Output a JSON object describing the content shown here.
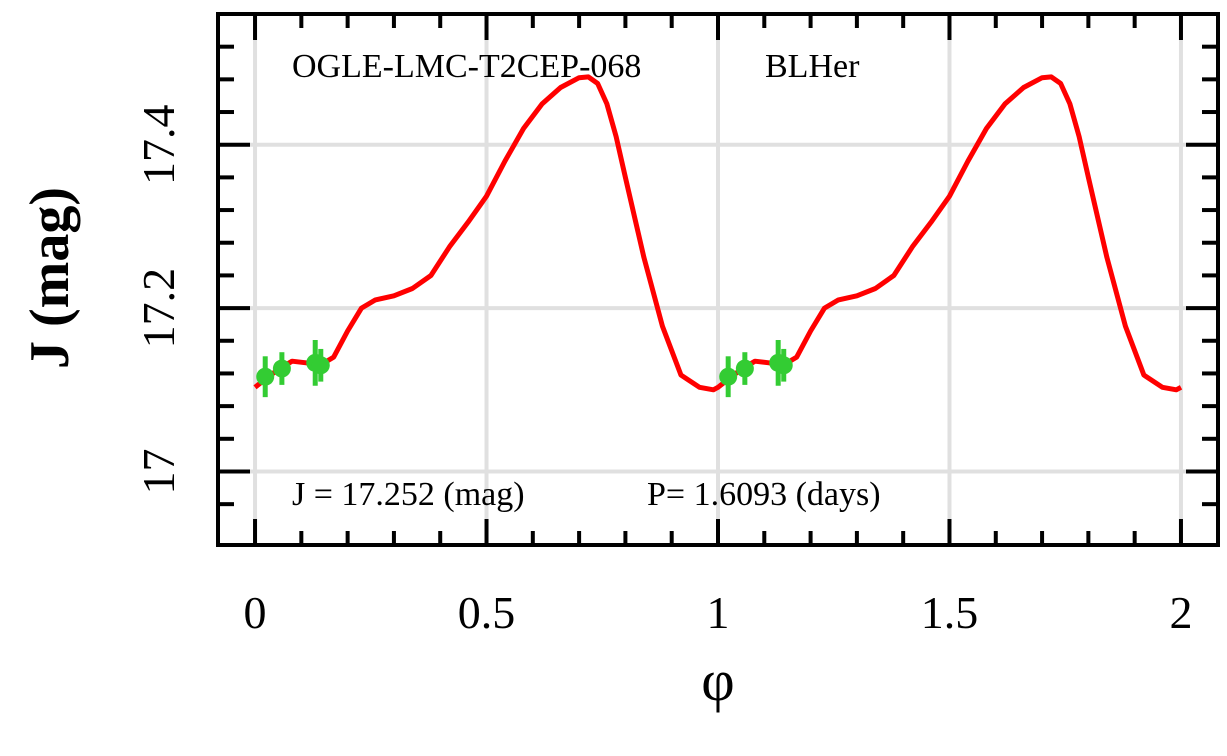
{
  "chart_data": {
    "type": "scatter",
    "title": "OGLE-LMC-T2CEP-068",
    "subtitle": "BLHer",
    "xlabel": "φ",
    "ylabel": "J (mag)",
    "xlim": [
      -0.08,
      2.08
    ],
    "ylim": [
      17.56,
      16.91
    ],
    "y_inverted": true,
    "grid": true,
    "x_ticks": [
      0,
      0.5,
      1,
      1.5,
      2
    ],
    "x_tick_labels": [
      "0",
      "0.5",
      "1",
      "1.5",
      "2"
    ],
    "y_ticks": [
      17.0,
      17.2,
      17.4
    ],
    "y_tick_labels": [
      "17",
      "17.2",
      "17.4"
    ],
    "annotation": {
      "mean_mag_text": "J  =  17.252  (mag)",
      "period_text": "P=  1.6093  (days)"
    },
    "colors": {
      "fit_curve": "#ff0000",
      "observations": "#33cc33",
      "grid": "#e0e0e0",
      "frame": "#000000"
    },
    "series": [
      {
        "kind": "fit_curve",
        "x": [
          0.0,
          0.02,
          0.05,
          0.08,
          0.11,
          0.14,
          0.17,
          0.2,
          0.23,
          0.26,
          0.3,
          0.34,
          0.38,
          0.42,
          0.46,
          0.5,
          0.54,
          0.58,
          0.62,
          0.66,
          0.7,
          0.72,
          0.74,
          0.76,
          0.78,
          0.8,
          0.84,
          0.88,
          0.92,
          0.96,
          0.99,
          1.0,
          1.02,
          1.05,
          1.08,
          1.11,
          1.14,
          1.17,
          1.2,
          1.23,
          1.26,
          1.3,
          1.34,
          1.38,
          1.42,
          1.46,
          1.5,
          1.54,
          1.58,
          1.62,
          1.66,
          1.7,
          1.72,
          1.74,
          1.76,
          1.78,
          1.8,
          1.84,
          1.88,
          1.92,
          1.96,
          1.99,
          2.0
        ],
        "y": [
          17.103,
          17.112,
          17.125,
          17.135,
          17.133,
          17.13,
          17.14,
          17.172,
          17.2,
          17.21,
          17.215,
          17.224,
          17.24,
          17.275,
          17.305,
          17.337,
          17.38,
          17.42,
          17.45,
          17.47,
          17.482,
          17.483,
          17.475,
          17.45,
          17.41,
          17.36,
          17.262,
          17.178,
          17.118,
          17.103,
          17.1,
          17.103,
          17.112,
          17.125,
          17.135,
          17.133,
          17.13,
          17.14,
          17.172,
          17.2,
          17.21,
          17.215,
          17.224,
          17.24,
          17.275,
          17.305,
          17.337,
          17.38,
          17.42,
          17.45,
          17.47,
          17.482,
          17.483,
          17.475,
          17.45,
          17.41,
          17.36,
          17.262,
          17.178,
          17.118,
          17.103,
          17.1,
          17.103
        ]
      },
      {
        "kind": "observations",
        "x": [
          0.022,
          0.058,
          0.13,
          0.142,
          1.022,
          1.058,
          1.13,
          1.142
        ],
        "y": [
          17.116,
          17.126,
          17.133,
          17.13,
          17.116,
          17.126,
          17.133,
          17.13
        ],
        "yerr": [
          0.025,
          0.02,
          0.028,
          0.02,
          0.025,
          0.02,
          0.028,
          0.02
        ]
      }
    ]
  }
}
